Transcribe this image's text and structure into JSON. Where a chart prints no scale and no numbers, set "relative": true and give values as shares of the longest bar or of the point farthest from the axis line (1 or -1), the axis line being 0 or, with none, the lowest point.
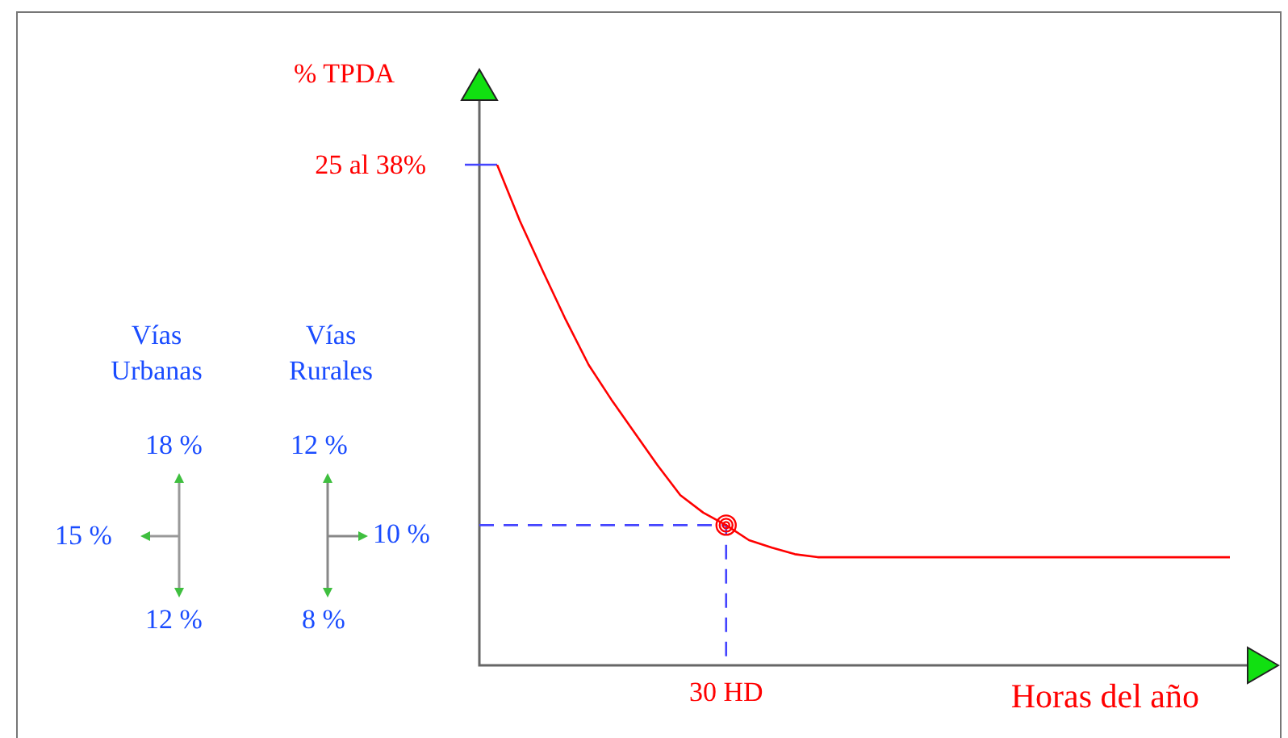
{
  "chart_data": {
    "type": "line",
    "relative": true,
    "ylabel": "% TPDA",
    "xlabel": "Horas del año",
    "legend": false,
    "categories": [
      null,
      null,
      null,
      null,
      null,
      null,
      null,
      null,
      null,
      null,
      null,
      null,
      null,
      null,
      null,
      null,
      null,
      null,
      null,
      null,
      null,
      null,
      null,
      null,
      null,
      null,
      null,
      null,
      null,
      null,
      null,
      null,
      null
    ],
    "series": [
      {
        "color": "#ff0000",
        "values": [
          1,
          0.887,
          0.787,
          0.69,
          0.6,
          0.53,
          0.465,
          0.4,
          0.34,
          0.305,
          0.28,
          0.25,
          0.235,
          0.222,
          0.216,
          0.216,
          0.216,
          0.216,
          0.216,
          0.216,
          0.216,
          0.216,
          0.216,
          0.216,
          0.216,
          0.216,
          0.216,
          0.216,
          0.216,
          0.216,
          0.216,
          0.216,
          0.216
        ]
      }
    ],
    "ref_lines": [
      {
        "axis": "y",
        "value": 0.28,
        "color": "#4444ff",
        "line_style": "dashed"
      }
    ],
    "annotations": [
      "25 al 38%",
      "30 HD",
      "Vías Urbanas",
      "Vías Rurales",
      "18 %",
      "15 %",
      "12 %",
      "12 %",
      "10 %",
      "8 %"
    ]
  }
}
